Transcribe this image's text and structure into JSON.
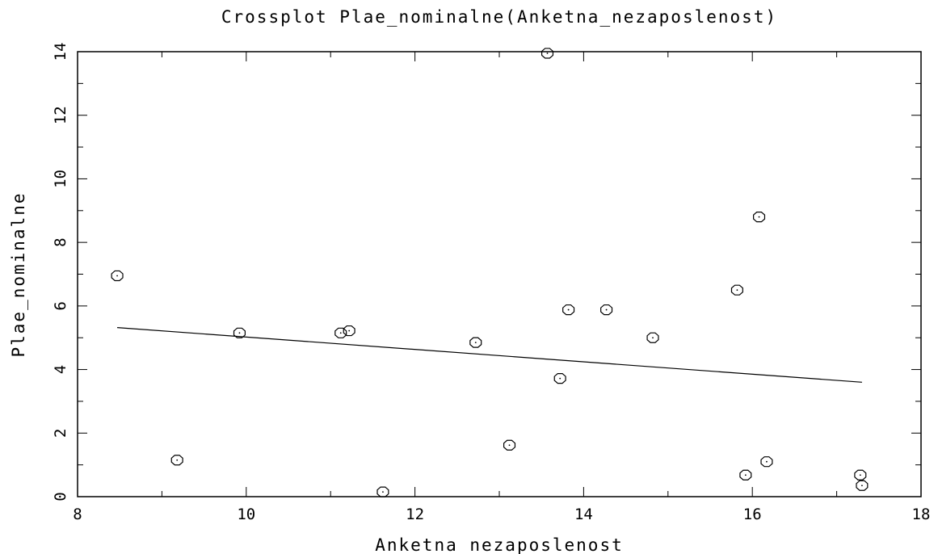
{
  "chart_data": {
    "type": "scatter",
    "title": "Crossplot Plae_nominalne(Anketna_nezaposlenost)",
    "xlabel": "Anketna_nezaposlenost",
    "ylabel": "Plae_nominalne",
    "xlim": [
      8,
      18
    ],
    "ylim": [
      0,
      14
    ],
    "xticks": [
      8,
      10,
      12,
      14,
      16,
      18
    ],
    "yticks": [
      0,
      2,
      4,
      6,
      8,
      10,
      12,
      14
    ],
    "grid": false,
    "series": [
      {
        "points": [
          [
            8.47,
            6.95
          ],
          [
            9.18,
            1.15
          ],
          [
            9.92,
            5.15
          ],
          [
            11.12,
            5.15
          ],
          [
            11.22,
            5.22
          ],
          [
            11.62,
            0.15
          ],
          [
            12.72,
            4.85
          ],
          [
            13.12,
            1.62
          ],
          [
            13.57,
            13.95
          ],
          [
            13.72,
            3.72
          ],
          [
            13.82,
            5.88
          ],
          [
            14.27,
            5.88
          ],
          [
            14.82,
            5.0
          ],
          [
            15.82,
            6.5
          ],
          [
            15.92,
            0.68
          ],
          [
            16.08,
            8.8
          ],
          [
            16.17,
            1.1
          ],
          [
            17.28,
            0.68
          ],
          [
            17.3,
            0.35
          ]
        ]
      }
    ],
    "fit_line": {
      "x": [
        8.47,
        17.3
      ],
      "y": [
        5.32,
        3.6
      ]
    }
  }
}
